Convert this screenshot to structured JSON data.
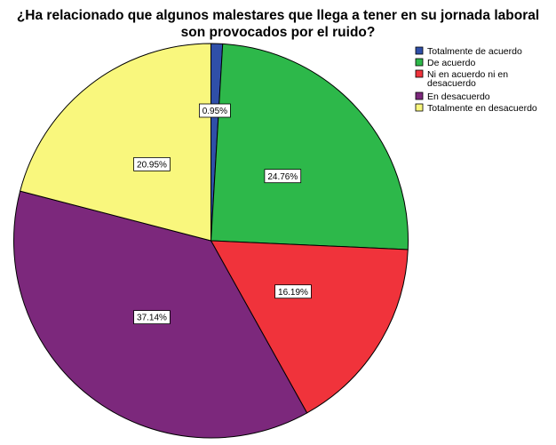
{
  "chart_data": {
    "type": "pie",
    "title_lines": [
      "¿Ha relacionado que algunos malestares que llega a tener en su jornada laboral",
      "son provocados por el ruido?"
    ],
    "slices": [
      {
        "name": "Totalmente de acuerdo",
        "value": 0.95,
        "label": "0.95%",
        "color": "#2f4fa8"
      },
      {
        "name": "De acuerdo",
        "value": 24.76,
        "label": "24.76%",
        "color": "#2db84a"
      },
      {
        "name": "Ni en acuerdo ni en desacuerdo",
        "value": 16.19,
        "label": "16.19%",
        "color": "#f0333b"
      },
      {
        "name": "En desacuerdo",
        "value": 37.14,
        "label": "37.14%",
        "color": "#7c287c"
      },
      {
        "name": "Totalmente en desacuerdo",
        "value": 20.95,
        "label": "20.95%",
        "color": "#f9f77d"
      }
    ],
    "legend_entries": [
      {
        "lines": [
          "Totalmente de acuerdo"
        ]
      },
      {
        "lines": [
          "De acuerdo"
        ]
      },
      {
        "lines": [
          "Ni en acuerdo ni en",
          "desacuerdo"
        ]
      },
      {
        "lines": [
          "En desacuerdo"
        ]
      },
      {
        "lines": [
          "Totalmente en desacuerdo"
        ]
      }
    ],
    "legend_position": "top-right"
  }
}
